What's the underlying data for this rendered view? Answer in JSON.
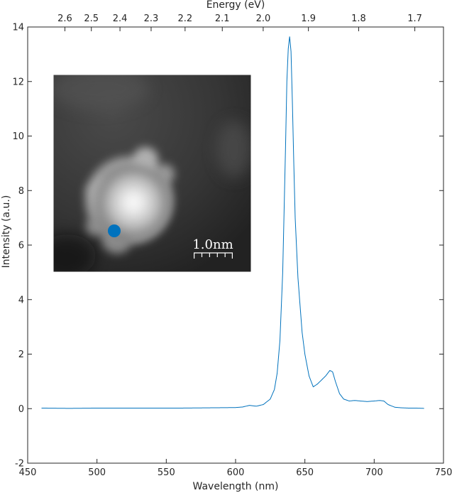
{
  "chart_data": {
    "type": "line",
    "xlabel": "Wavelength (nm)",
    "x2label": "Energy (eV)",
    "ylabel": "Intensity (a.u.)",
    "xlim": [
      450,
      750
    ],
    "ylim": [
      -2,
      14
    ],
    "x_ticks": [
      450,
      500,
      550,
      600,
      650,
      700,
      750
    ],
    "y_ticks": [
      -2,
      0,
      2,
      4,
      6,
      8,
      10,
      12,
      14
    ],
    "x2_ticks": [
      2.6,
      2.5,
      2.4,
      2.3,
      2.2,
      2.1,
      2.0,
      1.9,
      1.8,
      1.7
    ],
    "x2_tick_labels": [
      "2.6",
      "2.5",
      "2.4",
      "2.3",
      "2.2",
      "2.1",
      "2.0",
      "1.9",
      "1.8",
      "1.7"
    ],
    "grid": false,
    "series": [
      {
        "color": "#0072BD",
        "x": [
          460,
          480,
          500,
          520,
          540,
          560,
          580,
          600,
          605,
          610,
          615,
          620,
          625,
          628,
          630,
          632,
          634,
          636,
          637,
          638,
          639,
          640,
          641,
          642,
          643,
          645,
          648,
          650,
          653,
          656,
          659,
          662,
          665,
          668,
          670,
          672,
          675,
          678,
          682,
          686,
          690,
          695,
          700,
          704,
          707,
          710,
          715,
          720,
          725,
          730,
          736
        ],
        "y": [
          0.02,
          0.01,
          0.02,
          0.02,
          0.02,
          0.02,
          0.03,
          0.04,
          0.06,
          0.12,
          0.09,
          0.15,
          0.35,
          0.7,
          1.3,
          2.5,
          5.0,
          9.5,
          12.0,
          13.2,
          13.65,
          13.1,
          11.2,
          9.0,
          7.0,
          4.8,
          2.8,
          2.0,
          1.2,
          0.8,
          0.9,
          1.05,
          1.2,
          1.4,
          1.35,
          1.0,
          0.55,
          0.35,
          0.28,
          0.3,
          0.28,
          0.26,
          0.28,
          0.3,
          0.28,
          0.15,
          0.05,
          0.03,
          0.02,
          0.02,
          0.01
        ]
      }
    ],
    "inset": {
      "type": "image",
      "scale_bar_label": "1.0nm",
      "marker_color": "#0072BD"
    }
  }
}
